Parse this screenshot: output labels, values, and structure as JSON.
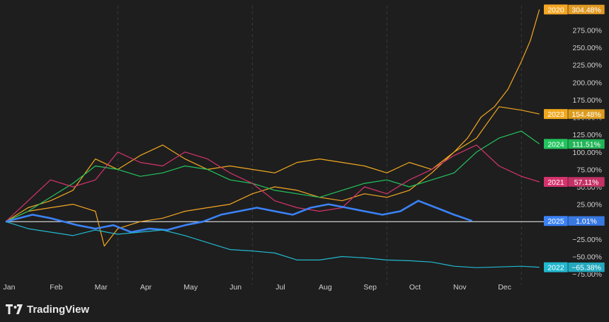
{
  "brand": {
    "name": "TradingView"
  },
  "colors": {
    "background": "#1e1e1e",
    "grid": "#3a3a3a",
    "axis_text": "#d0d0d0",
    "zero_line": "#d0d0d0"
  },
  "chart_data": {
    "type": "line",
    "title": "",
    "xlabel": "",
    "ylabel": "",
    "x_ticks": [
      "Jan",
      "Feb",
      "Mar",
      "Apr",
      "May",
      "Jun",
      "Jul",
      "Aug",
      "Sep",
      "Oct",
      "Nov",
      "Dec"
    ],
    "ylim": [
      -80,
      310
    ],
    "y_ticks_percent": [
      -75,
      -50,
      -25,
      25,
      50,
      75,
      100,
      125,
      150,
      175,
      200,
      225,
      250,
      275
    ],
    "y_tick_labels": [
      "−75.00%",
      "−50.00%",
      "−25.00%",
      "25.00%",
      "50.00%",
      "75.00%",
      "100.00%",
      "125.00%",
      "150.00%",
      "175.00%",
      "200.00%",
      "225.00%",
      "250.00%",
      "275.00%"
    ],
    "vertical_grid_dashed_months": [
      "Mar",
      "Jun",
      "Sep",
      "Dec"
    ],
    "series": [
      {
        "name": "2020",
        "color": "#f5a623",
        "last_label": "304.48%",
        "x": [
          0,
          0.5,
          1,
          1.5,
          2,
          2.2,
          2.5,
          3,
          3.5,
          4,
          4.5,
          5,
          5.5,
          6,
          6.5,
          7,
          7.5,
          8,
          8.5,
          9,
          9.5,
          10,
          10.3,
          10.6,
          10.9,
          11.2,
          11.5,
          11.7,
          11.9
        ],
        "y": [
          0,
          15,
          20,
          25,
          15,
          -35,
          -10,
          0,
          5,
          15,
          20,
          25,
          40,
          50,
          45,
          35,
          30,
          40,
          35,
          45,
          70,
          100,
          120,
          150,
          165,
          190,
          230,
          260,
          304.48
        ]
      },
      {
        "name": "2023",
        "color": "#f0a81e",
        "last_label": "154.48%",
        "x": [
          0,
          0.5,
          1,
          1.5,
          2,
          2.5,
          3,
          3.5,
          4,
          4.5,
          5,
          5.5,
          6,
          6.5,
          7,
          7.5,
          8,
          8.5,
          9,
          9.5,
          10,
          10.5,
          11,
          11.5,
          11.9
        ],
        "y": [
          0,
          20,
          30,
          45,
          90,
          75,
          95,
          110,
          90,
          75,
          80,
          75,
          70,
          85,
          90,
          85,
          80,
          70,
          85,
          75,
          100,
          120,
          165,
          160,
          154.48
        ]
      },
      {
        "name": "2024",
        "color": "#22c55e",
        "last_label": "111.51%",
        "x": [
          0,
          0.5,
          1,
          1.5,
          2,
          2.5,
          3,
          3.5,
          4,
          4.5,
          5,
          5.5,
          6,
          6.5,
          7,
          7.5,
          8,
          8.5,
          9,
          9.5,
          10,
          10.5,
          11,
          11.5,
          11.9
        ],
        "y": [
          0,
          15,
          35,
          55,
          80,
          75,
          65,
          70,
          80,
          75,
          60,
          55,
          45,
          40,
          35,
          45,
          55,
          60,
          50,
          60,
          70,
          100,
          120,
          130,
          111.51
        ]
      },
      {
        "name": "2021",
        "color": "#d6336c",
        "last_label": "57.11%",
        "x": [
          0,
          0.5,
          1,
          1.5,
          2,
          2.5,
          3,
          3.5,
          4,
          4.5,
          5,
          5.5,
          6,
          6.5,
          7,
          7.5,
          8,
          8.5,
          9,
          9.5,
          10,
          10.5,
          11,
          11.5,
          11.9
        ],
        "y": [
          0,
          30,
          60,
          50,
          60,
          100,
          85,
          80,
          100,
          90,
          70,
          55,
          30,
          20,
          15,
          20,
          50,
          40,
          60,
          75,
          95,
          110,
          80,
          65,
          57.11
        ]
      },
      {
        "name": "2025",
        "color": "#3b82f6",
        "last_label": "1.01%",
        "x": [
          0,
          0.3,
          0.6,
          1,
          1.3,
          1.6,
          2,
          2.4,
          2.8,
          3.2,
          3.6,
          4,
          4.4,
          4.8,
          5.2,
          5.6,
          6,
          6.4,
          6.8,
          7.2,
          7.6,
          8,
          8.4,
          8.8,
          9.2,
          9.6,
          10,
          10.4
        ],
        "y": [
          0,
          5,
          10,
          5,
          0,
          -5,
          -10,
          -5,
          -15,
          -10,
          -12,
          -5,
          0,
          10,
          15,
          20,
          15,
          10,
          20,
          25,
          20,
          15,
          10,
          15,
          30,
          20,
          10,
          1.01
        ]
      },
      {
        "name": "2022",
        "color": "#22b8cf",
        "last_label": "−65.38%",
        "x": [
          0,
          0.5,
          1,
          1.5,
          2,
          2.5,
          3,
          3.5,
          4,
          4.5,
          5,
          5.5,
          6,
          6.5,
          7,
          7.5,
          8,
          8.5,
          9,
          9.5,
          10,
          10.5,
          11,
          11.5,
          11.9
        ],
        "y": [
          0,
          -10,
          -15,
          -20,
          -12,
          -18,
          -15,
          -12,
          -20,
          -30,
          -40,
          -42,
          -45,
          -55,
          -55,
          -50,
          -52,
          -55,
          -56,
          -58,
          -64,
          -66,
          -65,
          -64,
          -65.38
        ]
      }
    ]
  }
}
